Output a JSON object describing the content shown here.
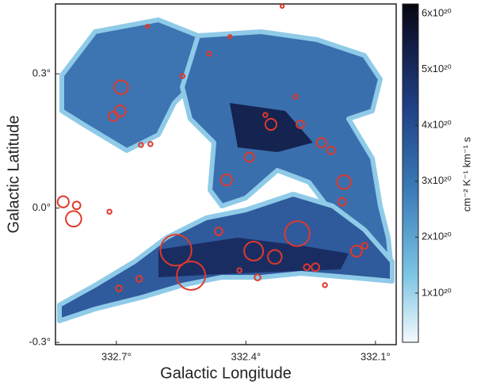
{
  "chart_data": {
    "type": "scatter",
    "xlabel": "Galactic Longitude",
    "ylabel": "Galactic Latitude",
    "xlim": [
      332.841,
      332.052
    ],
    "ylim": [
      -0.305,
      0.456
    ],
    "xticks": [
      {
        "value": 332.7,
        "label": "332.7°"
      },
      {
        "value": 332.4,
        "label": "332.4°"
      },
      {
        "value": 332.1,
        "label": "332.1°"
      }
    ],
    "yticks": [
      {
        "value": 0.3,
        "label": "0.3°"
      },
      {
        "value": 0.0,
        "label": "0.0°"
      },
      {
        "value": -0.3,
        "label": "-0.3°"
      }
    ],
    "color": "#e0392b",
    "x": [
      332.689,
      332.691,
      332.707,
      332.823,
      332.792,
      332.799,
      332.716,
      332.562,
      332.527,
      332.463,
      332.445,
      332.382,
      332.333,
      332.281,
      332.342,
      332.274,
      332.225,
      332.203,
      332.173,
      332.177,
      332.144,
      332.125,
      332.239,
      332.392,
      332.485,
      332.694,
      332.647,
      332.621,
      332.643,
      332.547,
      332.285,
      332.259,
      332.373,
      332.415,
      332.217,
      332.355,
      332.437,
      332.316,
      332.628
    ],
    "y": [
      0.27,
      0.217,
      0.205,
      0.014,
      0.006,
      -0.024,
      -0.008,
      -0.094,
      -0.151,
      -0.052,
      0.063,
      -0.096,
      -0.109,
      -0.057,
      0.187,
      0.187,
      0.146,
      0.129,
      0.058,
      0.014,
      -0.096,
      -0.084,
      -0.132,
      0.114,
      0.345,
      -0.179,
      -0.158,
      0.143,
      0.141,
      0.295,
      0.249,
      -0.132,
      -0.155,
      -0.139,
      -0.172,
      0.208,
      0.383,
      0.451,
      0.406
    ],
    "sizes": [
      0.016,
      0.013,
      0.011,
      0.013,
      0.009,
      0.018,
      0.005,
      0.036,
      0.033,
      0.009,
      0.013,
      0.022,
      0.016,
      0.029,
      0.013,
      0.009,
      0.011,
      0.009,
      0.016,
      0.009,
      0.013,
      0.007,
      0.009,
      0.011,
      0.005,
      0.007,
      0.007,
      0.005,
      0.005,
      0.005,
      0.005,
      0.007,
      0.007,
      0.005,
      0.005,
      0.005,
      0.004,
      0.004,
      0.004
    ],
    "colorbar": {
      "label": "cm⁻² K⁻¹ km⁻¹ s",
      "lim": [
        1.2e+19,
        6.17e+20
      ],
      "ticks": [
        {
          "value": 1e+20,
          "label": "1x10²⁰"
        },
        {
          "value": 2e+20,
          "label": "2x10²⁰"
        },
        {
          "value": 3e+20,
          "label": "3x10²⁰"
        },
        {
          "value": 4e+20,
          "label": "4x10²⁰"
        },
        {
          "value": 5e+20,
          "label": "5x10²⁰"
        },
        {
          "value": 6e+20,
          "label": "6x10²⁰"
        }
      ]
    }
  }
}
